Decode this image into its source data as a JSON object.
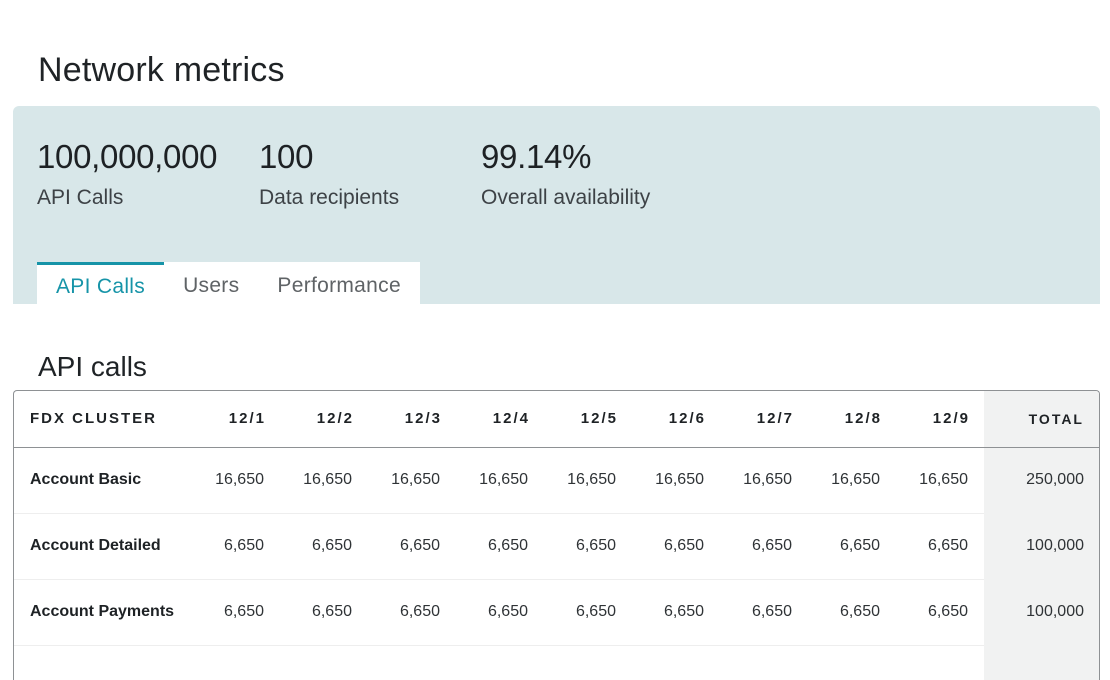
{
  "page": {
    "title": "Network metrics"
  },
  "metrics": [
    {
      "value": "100,000,000",
      "label": "API Calls"
    },
    {
      "value": "100",
      "label": "Data recipients"
    },
    {
      "value": "99.14%",
      "label": "Overall availability"
    }
  ],
  "tabs": [
    {
      "label": "API Calls",
      "active": true
    },
    {
      "label": "Users",
      "active": false
    },
    {
      "label": "Performance",
      "active": false
    }
  ],
  "section": {
    "title": "API calls"
  },
  "table": {
    "headers": [
      "FDX CLUSTER",
      "12/1",
      "12/2",
      "12/3",
      "12/4",
      "12/5",
      "12/6",
      "12/7",
      "12/8",
      "12/9",
      "TOTAL"
    ],
    "rows": [
      [
        "Account Basic",
        "16,650",
        "16,650",
        "16,650",
        "16,650",
        "16,650",
        "16,650",
        "16,650",
        "16,650",
        "16,650",
        "250,000"
      ],
      [
        "Account Detailed",
        "6,650",
        "6,650",
        "6,650",
        "6,650",
        "6,650",
        "6,650",
        "6,650",
        "6,650",
        "6,650",
        "100,000"
      ],
      [
        "Account Payments",
        "6,650",
        "6,650",
        "6,650",
        "6,650",
        "6,650",
        "6,650",
        "6,650",
        "6,650",
        "6,650",
        "100,000"
      ],
      [
        "",
        "",
        "",
        "",
        "",
        "",
        "",
        "",
        "",
        "",
        ""
      ]
    ]
  },
  "colors": {
    "accent": "#1694a8",
    "panel_background": "#d8e7e9",
    "total_column_background": "#f1f2f2"
  }
}
